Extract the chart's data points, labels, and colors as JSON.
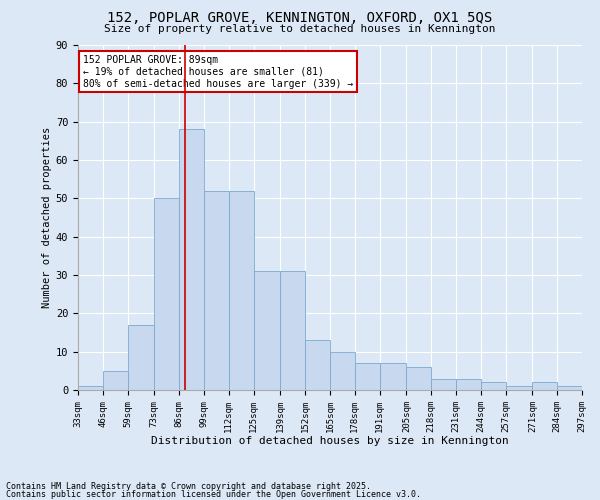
{
  "title1": "152, POPLAR GROVE, KENNINGTON, OXFORD, OX1 5QS",
  "title2": "Size of property relative to detached houses in Kennington",
  "xlabel": "Distribution of detached houses by size in Kennington",
  "ylabel": "Number of detached properties",
  "bar_color": "#c8d8ef",
  "bar_edge_color": "#7aaad0",
  "background_color": "#dce8f5",
  "grid_color": "#ffffff",
  "vline_color": "#cc0000",
  "vline_x": 89,
  "annotation_text": "152 POPLAR GROVE: 89sqm\n← 19% of detached houses are smaller (81)\n80% of semi-detached houses are larger (339) →",
  "annotation_box_color": "#ffffff",
  "annotation_border_color": "#cc0000",
  "footnote1": "Contains HM Land Registry data © Crown copyright and database right 2025.",
  "footnote2": "Contains public sector information licensed under the Open Government Licence v3.0.",
  "bin_edges": [
    33,
    46,
    59,
    73,
    86,
    99,
    112,
    125,
    139,
    152,
    165,
    178,
    191,
    205,
    218,
    231,
    244,
    257,
    271,
    284,
    297
  ],
  "bin_labels": [
    "33sqm",
    "46sqm",
    "59sqm",
    "73sqm",
    "86sqm",
    "99sqm",
    "112sqm",
    "125sqm",
    "139sqm",
    "152sqm",
    "165sqm",
    "178sqm",
    "191sqm",
    "205sqm",
    "218sqm",
    "231sqm",
    "244sqm",
    "257sqm",
    "271sqm",
    "284sqm",
    "297sqm"
  ],
  "bar_heights": [
    1,
    5,
    17,
    50,
    68,
    52,
    52,
    31,
    31,
    13,
    10,
    7,
    7,
    6,
    3,
    3,
    2,
    1,
    2,
    1
  ],
  "ylim": [
    0,
    90
  ],
  "yticks": [
    0,
    10,
    20,
    30,
    40,
    50,
    60,
    70,
    80,
    90
  ]
}
